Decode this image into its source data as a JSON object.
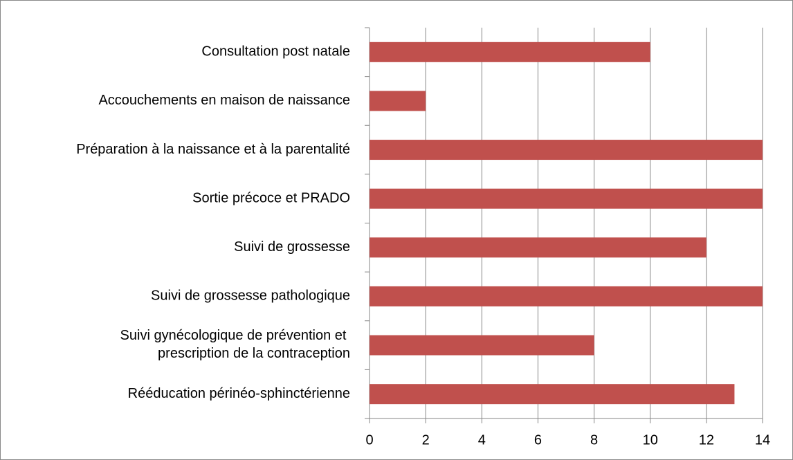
{
  "chart_data": {
    "type": "bar",
    "orientation": "horizontal",
    "categories": [
      "Consultation post natale",
      "Accouchements en maison de naissance",
      "Préparation à la naissance et à la parentalité",
      "Sortie précoce et PRADO",
      "Suivi de grossesse",
      "Suivi de grossesse pathologique",
      "Suivi gynécologique de prévention et\nprescription de la contraception",
      "Rééducation périnéo-sphinctérienne"
    ],
    "values": [
      10,
      2,
      14,
      14,
      12,
      14,
      8,
      13
    ],
    "color": "#c0504d",
    "xlim": [
      0,
      14
    ],
    "xticks": [
      0,
      2,
      4,
      6,
      8,
      10,
      12,
      14
    ],
    "grid": true
  }
}
